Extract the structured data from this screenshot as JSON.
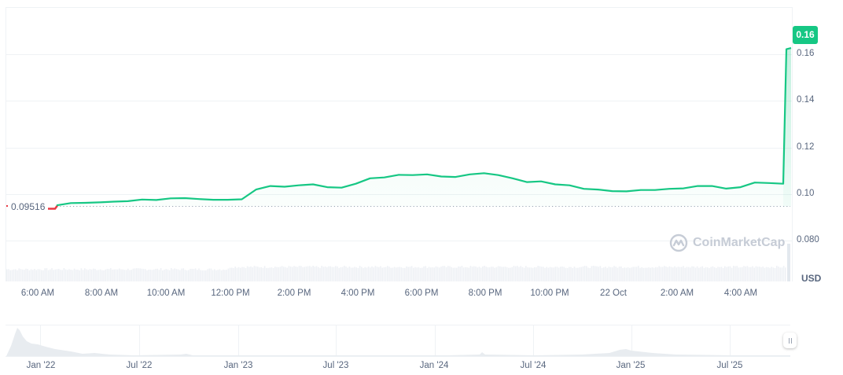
{
  "chart_data": {
    "type": "line",
    "title": "",
    "currency_label": "USD",
    "current_price": "0.16",
    "baseline_price": "0.09516",
    "watermark": "CoinMarketCap",
    "colors": {
      "up": "#16c784",
      "down": "#ea3943",
      "grid": "#eff2f5",
      "volume": "#eef1f5"
    },
    "ylabel": "USD",
    "ylim": [
      0.07,
      0.1735
    ],
    "yticks": [
      "0.16",
      "0.14",
      "0.12",
      "0.10",
      "0.080"
    ],
    "xlabel": "",
    "xticks": [
      "6:00 AM",
      "8:00 AM",
      "10:00 AM",
      "12:00 PM",
      "2:00 PM",
      "4:00 PM",
      "6:00 PM",
      "8:00 PM",
      "10:00 PM",
      "22 Oct",
      "2:00 AM",
      "4:00 AM"
    ],
    "series": [
      {
        "name": "Price (USD)",
        "x": [
          "5:50 AM",
          "6:10 AM",
          "6:40 AM",
          "7:00 AM",
          "7:30 AM",
          "8:00 AM",
          "8:30 AM",
          "9:00 AM",
          "9:30 AM",
          "10:00 AM",
          "10:30 AM",
          "11:00 AM",
          "11:30 AM",
          "12:00 PM",
          "12:15 PM",
          "12:45 PM",
          "1:15 PM",
          "1:45 PM",
          "2:00 PM",
          "2:30 PM",
          "3:00 PM",
          "3:30 PM",
          "3:50 PM",
          "4:15 PM",
          "4:45 PM",
          "5:15 PM",
          "5:45 PM",
          "6:15 PM",
          "6:45 PM",
          "7:15 PM",
          "7:45 PM",
          "8:00 PM",
          "8:20 PM",
          "8:40 PM",
          "9:00 PM",
          "9:30 PM",
          "10:00 PM",
          "10:30 PM",
          "11:00 PM",
          "11:30 PM",
          "12:00 AM",
          "12:30 AM",
          "1:00 AM",
          "1:30 AM",
          "2:00 AM",
          "2:30 AM",
          "3:00 AM",
          "3:30 AM",
          "4:00 AM",
          "4:30 AM",
          "5:00 AM",
          "5:10 AM",
          "5:20 AM"
        ],
        "values": [
          0.0952,
          0.0962,
          0.0963,
          0.0965,
          0.0968,
          0.097,
          0.0977,
          0.0975,
          0.0982,
          0.0983,
          0.0979,
          0.0976,
          0.0976,
          0.0978,
          0.102,
          0.1035,
          0.1032,
          0.1038,
          0.1042,
          0.103,
          0.1028,
          0.1045,
          0.1068,
          0.1072,
          0.1083,
          0.1082,
          0.1085,
          0.1076,
          0.1074,
          0.1085,
          0.109,
          0.1082,
          0.1068,
          0.1052,
          0.1055,
          0.1042,
          0.1038,
          0.1023,
          0.102,
          0.1013,
          0.1012,
          0.1018,
          0.1018,
          0.1023,
          0.1025,
          0.1035,
          0.1035,
          0.1024,
          0.103,
          0.105,
          0.1048,
          0.1045,
          0.1622
        ],
        "final_value": 0.16
      },
      {
        "name": "Volume",
        "description": "low, flat volume bars along the bottom with a spike at the end"
      }
    ],
    "navigator": {
      "type": "area",
      "xticks": [
        "Jan '22",
        "Jul '22",
        "Jan '23",
        "Jul '23",
        "Jan '24",
        "Jul '24",
        "Jan '25",
        "Jul '25"
      ],
      "description": "full-history price area: peak around Dec '21, decaying through 2022, small bumps in mid '24 and around Jan '25"
    },
    "grid": true,
    "legend": "none"
  }
}
